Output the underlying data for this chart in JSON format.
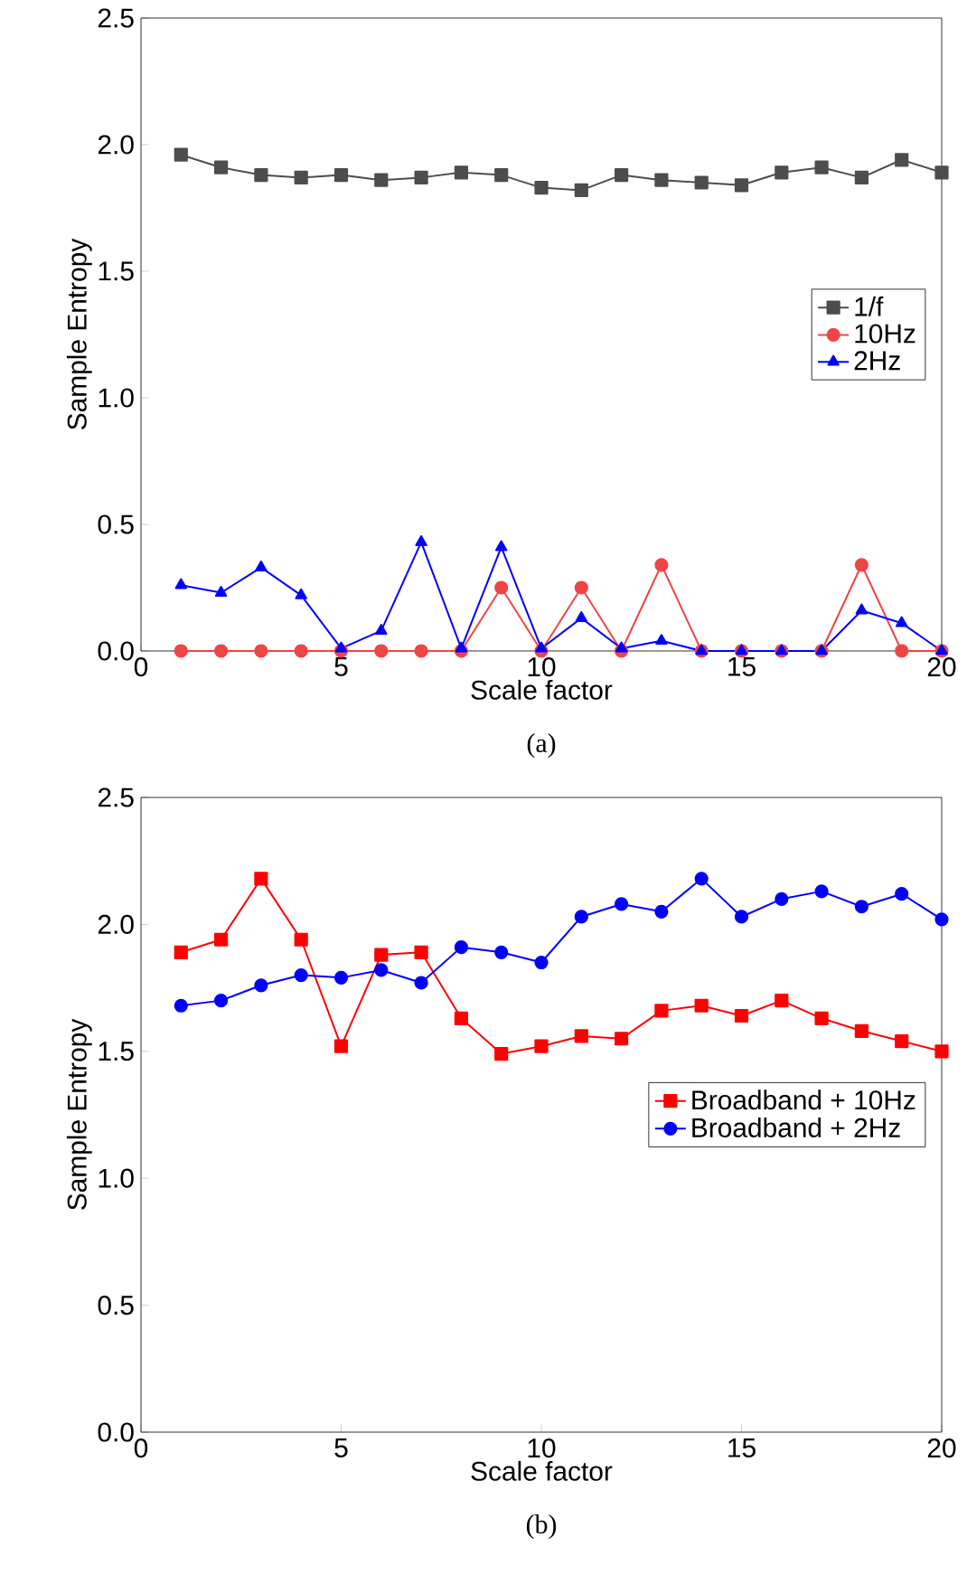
{
  "chart_data": [
    {
      "type": "line",
      "xlabel": "Scale factor",
      "ylabel": "Sample Entropy",
      "annotations": [
        "(a)"
      ],
      "x": [
        1,
        2,
        3,
        4,
        5,
        6,
        7,
        8,
        9,
        10,
        11,
        12,
        13,
        14,
        15,
        16,
        17,
        18,
        19,
        20
      ],
      "xlim": [
        0,
        20
      ],
      "ylim": [
        0,
        2.5
      ],
      "xticks": [
        0,
        5,
        10,
        15,
        20
      ],
      "yticks": [
        {
          "value": 0,
          "label": "0.0"
        },
        {
          "value": 0.5,
          "label": "0.5"
        },
        {
          "value": 1,
          "label": "1.0"
        },
        {
          "value": 1.5,
          "label": "1.5"
        },
        {
          "value": 2,
          "label": "2.0"
        },
        {
          "value": 2.5,
          "label": "2.5"
        }
      ],
      "grid": false,
      "legend": "right",
      "line_style": "solid",
      "series": [
        {
          "name": "1/f",
          "color": "#4d4d4d",
          "marker": "square",
          "values": [
            1.96,
            1.91,
            1.88,
            1.87,
            1.88,
            1.86,
            1.87,
            1.89,
            1.88,
            1.83,
            1.82,
            1.88,
            1.86,
            1.85,
            1.84,
            1.89,
            1.91,
            1.87,
            1.94,
            1.89
          ]
        },
        {
          "name": "10Hz",
          "color": "#f04545",
          "marker": "circle",
          "values": [
            0,
            0,
            0,
            0,
            0,
            0,
            0,
            0,
            0.25,
            0,
            0.25,
            0,
            0.34,
            0,
            0,
            0,
            0,
            0.34,
            0,
            0
          ]
        },
        {
          "name": "2Hz",
          "color": "#0000ff",
          "marker": "triangle",
          "values": [
            0.26,
            0.23,
            0.33,
            0.22,
            0.01,
            0.08,
            0.43,
            0.01,
            0.41,
            0.01,
            0.13,
            0.01,
            0.04,
            0,
            0,
            0,
            0,
            0.16,
            0.11,
            0
          ]
        }
      ]
    },
    {
      "type": "line",
      "xlabel": "Scale factor",
      "ylabel": "Sample Entropy",
      "annotations": [
        "(b)"
      ],
      "x": [
        1,
        2,
        3,
        4,
        5,
        6,
        7,
        8,
        9,
        10,
        11,
        12,
        13,
        14,
        15,
        16,
        17,
        18,
        19,
        20
      ],
      "xlim": [
        0,
        20
      ],
      "ylim": [
        0,
        2.5
      ],
      "xticks": [
        0,
        5,
        10,
        15,
        20
      ],
      "yticks": [
        {
          "value": 0,
          "label": "0.0"
        },
        {
          "value": 0.5,
          "label": "0.5"
        },
        {
          "value": 1,
          "label": "1.0"
        },
        {
          "value": 1.5,
          "label": "1.5"
        },
        {
          "value": 2,
          "label": "2.0"
        },
        {
          "value": 2.5,
          "label": "2.5"
        }
      ],
      "grid": false,
      "legend": "right",
      "line_style": "solid",
      "series": [
        {
          "name": "Broadband + 10Hz",
          "color": "#ff0000",
          "marker": "square",
          "values": [
            1.89,
            1.94,
            2.18,
            1.94,
            1.52,
            1.88,
            1.89,
            1.63,
            1.49,
            1.52,
            1.56,
            1.55,
            1.66,
            1.68,
            1.64,
            1.7,
            1.63,
            1.58,
            1.54,
            1.5
          ]
        },
        {
          "name": "Broadband + 2Hz",
          "color": "#0000ff",
          "marker": "circle",
          "values": [
            1.68,
            1.7,
            1.76,
            1.8,
            1.79,
            1.82,
            1.77,
            1.91,
            1.89,
            1.85,
            2.03,
            2.08,
            2.05,
            2.18,
            2.03,
            2.1,
            2.13,
            2.07,
            2.12,
            2.02
          ]
        }
      ]
    }
  ]
}
